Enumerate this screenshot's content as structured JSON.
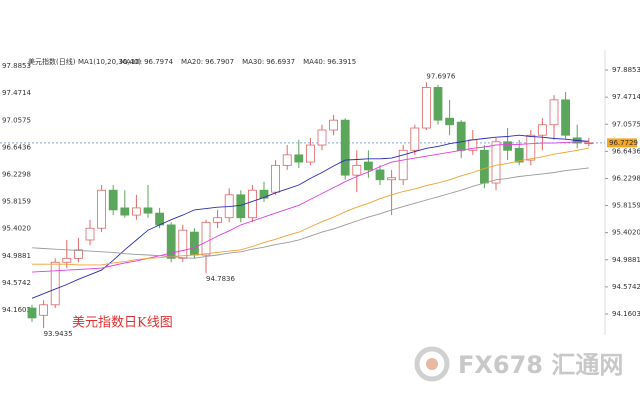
{
  "chart_data": {
    "type": "candlestick",
    "title": "美元指数(日线)",
    "ma_header": "MA1(10,20,30,40)",
    "caption": "美元指数日K线图",
    "watermark": "FX678 汇通网",
    "up_color": "#e06666",
    "down_color": "#5aa65a",
    "last_price": 96.7729,
    "open": [
      94.25,
      94.14,
      94.3,
      94.95,
      95.01,
      95.29,
      95.47,
      96.05,
      95.78,
      95.67,
      95.78,
      95.7,
      95.52,
      95.01,
      95.41,
      95.06,
      95.56,
      95.63,
      95.98,
      95.63,
      96.05,
      96.02,
      96.43,
      96.59,
      96.48,
      96.74,
      96.97,
      97.12,
      96.28,
      96.48,
      96.36,
      96.21,
      96.21,
      96.66,
      97.0,
      97.62,
      97.15,
      97.09,
      96.66,
      96.66,
      96.16,
      96.79,
      96.69,
      96.51,
      96.89,
      97.05,
      97.43,
      96.85,
      96.77
    ],
    "high": [
      94.3,
      94.37,
      95.01,
      95.29,
      95.32,
      95.6,
      96.13,
      96.13,
      96.05,
      95.98,
      96.13,
      95.78,
      95.56,
      95.52,
      95.47,
      95.6,
      95.75,
      96.08,
      96.05,
      96.13,
      96.18,
      96.51,
      96.74,
      96.82,
      96.85,
      97.05,
      97.2,
      97.15,
      96.66,
      96.66,
      96.43,
      96.36,
      96.74,
      97.05,
      97.6976,
      97.66,
      97.43,
      97.12,
      96.97,
      96.74,
      96.85,
      97.0,
      96.82,
      96.97,
      97.15,
      97.5,
      97.55,
      97.05,
      96.85
    ],
    "low": [
      94.04,
      93.9435,
      94.25,
      94.86,
      94.95,
      95.21,
      95.41,
      95.67,
      95.63,
      95.6,
      95.63,
      95.47,
      94.95,
      94.95,
      95.01,
      94.7836,
      95.47,
      95.56,
      95.56,
      95.56,
      95.87,
      95.98,
      96.36,
      96.39,
      96.43,
      96.66,
      96.89,
      96.21,
      96.02,
      96.24,
      96.13,
      95.67,
      96.13,
      96.59,
      96.97,
      97.05,
      96.89,
      96.54,
      96.59,
      96.08,
      96.05,
      96.51,
      96.43,
      96.43,
      96.66,
      96.82,
      96.82,
      96.69,
      96.72
    ],
    "close": [
      94.1,
      94.3,
      94.95,
      95.01,
      95.14,
      95.47,
      96.05,
      95.75,
      95.67,
      95.78,
      95.7,
      95.52,
      95.01,
      95.44,
      95.06,
      95.56,
      95.63,
      95.98,
      95.63,
      96.05,
      95.93,
      96.43,
      96.59,
      96.48,
      96.74,
      96.97,
      97.12,
      96.28,
      96.43,
      96.36,
      96.21,
      96.24,
      96.66,
      97.0,
      97.62,
      97.12,
      97.05,
      96.66,
      96.82,
      96.16,
      96.79,
      96.66,
      96.48,
      96.89,
      97.05,
      97.43,
      96.89,
      96.77,
      96.7729
    ],
    "series": [
      {
        "name": "MA10:",
        "color": "#2b2bb8",
        "values": [
          94.4,
          94.47,
          94.54,
          94.61,
          94.69,
          94.76,
          94.83,
          94.98,
          95.14,
          95.29,
          95.44,
          95.52,
          95.6,
          95.67,
          95.75,
          95.77,
          95.79,
          95.8,
          95.82,
          95.88,
          95.94,
          96.01,
          96.07,
          96.13,
          96.23,
          96.32,
          96.42,
          96.51,
          96.52,
          96.53,
          96.53,
          96.54,
          96.59,
          96.64,
          96.69,
          96.72,
          96.76,
          96.79,
          96.82,
          96.84,
          96.86,
          96.87,
          96.89,
          96.87,
          96.86,
          96.84,
          96.83,
          96.81,
          96.7974
        ]
      },
      {
        "name": "MA20:",
        "color": "#e23de2",
        "values": [
          94.8,
          94.81,
          94.82,
          94.83,
          94.84,
          94.85,
          94.86,
          94.9,
          94.94,
          94.97,
          95.01,
          95.05,
          95.09,
          95.13,
          95.17,
          95.26,
          95.35,
          95.43,
          95.52,
          95.58,
          95.64,
          95.7,
          95.76,
          95.82,
          95.91,
          96.0,
          96.09,
          96.18,
          96.26,
          96.33,
          96.41,
          96.48,
          96.51,
          96.54,
          96.57,
          96.6,
          96.63,
          96.66,
          96.69,
          96.71,
          96.74,
          96.75,
          96.75,
          96.76,
          96.77,
          96.77,
          96.78,
          96.79,
          96.7907
        ]
      },
      {
        "name": "MA30:",
        "color": "#f0a030",
        "values": [
          94.92,
          94.92,
          94.92,
          94.92,
          94.91,
          94.91,
          94.91,
          94.94,
          94.96,
          94.99,
          95.01,
          95.02,
          95.04,
          95.05,
          95.06,
          95.08,
          95.1,
          95.12,
          95.14,
          95.19,
          95.25,
          95.3,
          95.36,
          95.41,
          95.49,
          95.57,
          95.64,
          95.72,
          95.79,
          95.85,
          95.92,
          95.98,
          96.03,
          96.07,
          96.12,
          96.16,
          96.21,
          96.27,
          96.32,
          96.38,
          96.43,
          96.46,
          96.5,
          96.53,
          96.56,
          96.6,
          96.63,
          96.66,
          96.6937
        ]
      },
      {
        "name": "MA40:",
        "color": "#9a9a9a",
        "values": [
          95.17,
          95.16,
          95.15,
          95.14,
          95.13,
          95.12,
          95.11,
          95.1,
          95.08,
          95.07,
          95.06,
          95.05,
          95.04,
          95.02,
          95.01,
          95.04,
          95.06,
          95.09,
          95.11,
          95.15,
          95.18,
          95.22,
          95.25,
          95.29,
          95.35,
          95.41,
          95.46,
          95.52,
          95.58,
          95.64,
          95.69,
          95.75,
          95.8,
          95.85,
          95.9,
          95.95,
          96.0,
          96.05,
          96.11,
          96.16,
          96.21,
          96.23,
          96.26,
          96.28,
          96.3,
          96.32,
          96.35,
          96.37,
          96.3915
        ]
      }
    ],
    "ylim": [
      93.9,
      98.1
    ],
    "yticks": [
      97.8853,
      97.4714,
      97.0575,
      96.6436,
      96.2298,
      95.8159,
      {
        "value": 95.402,
        "label": "95.4020"
      },
      94.9881,
      94.5742,
      94.1603
    ]
  }
}
